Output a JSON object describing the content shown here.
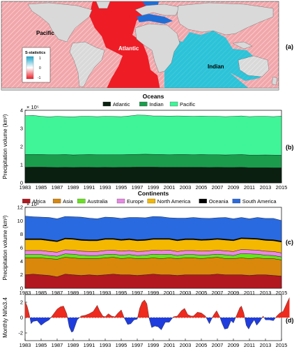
{
  "panel_labels": [
    "(a)",
    "(b)",
    "(c)",
    "(d)"
  ],
  "map": {
    "ocean_labels": [
      "Pacific",
      "Atlantic",
      "Indian"
    ],
    "legend_title": "S-statistics",
    "legend_ticks": [
      "1",
      "0",
      "-1"
    ],
    "colors": {
      "atlantic": "#ee1c25",
      "pacific": "#f1a7ab",
      "indian": "#2cc3d8",
      "land": "#b0b0b0",
      "hatch": "#ffffff"
    }
  },
  "chart_data": [
    {
      "type": "area",
      "stacked": true,
      "title": "Oceans",
      "ylabel": "Precipitation volume (km³)",
      "exponent_label": "× 10⁵",
      "ylim": [
        0,
        4
      ],
      "yticks": [
        "0",
        "1",
        "2",
        "3",
        "4"
      ],
      "xlim": [
        1983,
        2015
      ],
      "xticks": [
        "1983",
        "1985",
        "1987",
        "1989",
        "1991",
        "1993",
        "1995",
        "1997",
        "1999",
        "2001",
        "2003",
        "2005",
        "2007",
        "2009",
        "2011",
        "2013",
        "2015"
      ],
      "x": [
        1983,
        1984,
        1985,
        1986,
        1987,
        1988,
        1989,
        1990,
        1991,
        1992,
        1993,
        1994,
        1995,
        1996,
        1997,
        1998,
        1999,
        2000,
        2001,
        2002,
        2003,
        2004,
        2005,
        2006,
        2007,
        2008,
        2009,
        2010,
        2011,
        2012,
        2013,
        2014,
        2015
      ],
      "series": [
        {
          "name": "Atlantic",
          "color": "#0a1f10",
          "values": [
            0.86,
            0.87,
            0.87,
            0.86,
            0.85,
            0.86,
            0.85,
            0.86,
            0.86,
            0.85,
            0.86,
            0.85,
            0.86,
            0.86,
            0.87,
            0.87,
            0.87,
            0.86,
            0.86,
            0.86,
            0.86,
            0.86,
            0.86,
            0.85,
            0.86,
            0.85,
            0.85,
            0.86,
            0.84,
            0.84,
            0.84,
            0.83,
            0.83
          ]
        },
        {
          "name": "Indian",
          "color": "#1a9c4c",
          "values": [
            0.7,
            0.7,
            0.69,
            0.69,
            0.7,
            0.7,
            0.69,
            0.69,
            0.7,
            0.7,
            0.69,
            0.7,
            0.69,
            0.7,
            0.7,
            0.71,
            0.7,
            0.7,
            0.69,
            0.7,
            0.7,
            0.69,
            0.7,
            0.7,
            0.69,
            0.69,
            0.7,
            0.7,
            0.69,
            0.69,
            0.7,
            0.7,
            0.69
          ]
        },
        {
          "name": "Pacific",
          "color": "#3ff597",
          "values": [
            2.14,
            2.15,
            2.11,
            2.09,
            2.12,
            2.09,
            2.1,
            2.12,
            2.11,
            2.1,
            2.12,
            2.11,
            2.1,
            2.13,
            2.17,
            2.15,
            2.12,
            2.13,
            2.13,
            2.13,
            2.12,
            2.12,
            2.12,
            2.12,
            2.12,
            2.11,
            2.12,
            2.13,
            2.12,
            2.14,
            2.13,
            2.12,
            2.16
          ]
        }
      ]
    },
    {
      "type": "area",
      "stacked": true,
      "title": "Continents",
      "ylabel": "Precipitation volume (km³)",
      "exponent_label": "× 10⁴",
      "ylim": [
        0,
        12
      ],
      "yticks": [
        "0",
        "2",
        "4",
        "6",
        "8",
        "10",
        "12"
      ],
      "xlim": [
        1983,
        2015
      ],
      "xticks": [
        "1983",
        "1985",
        "1987",
        "1989",
        "1991",
        "1993",
        "1995",
        "1997",
        "1999",
        "2001",
        "2003",
        "2005",
        "2007",
        "2009",
        "2011",
        "2013",
        "2015"
      ],
      "x": [
        1983,
        1984,
        1985,
        1986,
        1987,
        1988,
        1989,
        1990,
        1991,
        1992,
        1993,
        1994,
        1995,
        1996,
        1997,
        1998,
        1999,
        2000,
        2001,
        2002,
        2003,
        2004,
        2005,
        2006,
        2007,
        2008,
        2009,
        2010,
        2011,
        2012,
        2013,
        2014,
        2015
      ],
      "series": [
        {
          "name": "Africa",
          "color": "#b11820",
          "values": [
            2.0,
            2.1,
            2.0,
            1.9,
            1.7,
            2.1,
            2.0,
            1.9,
            2.0,
            1.9,
            2.0,
            2.1,
            2.0,
            2.0,
            1.9,
            2.0,
            2.1,
            2.0,
            2.0,
            1.9,
            2.0,
            2.0,
            2.0,
            2.0,
            2.1,
            2.0,
            2.0,
            2.0,
            1.9,
            2.0,
            2.0,
            1.9,
            1.8
          ]
        },
        {
          "name": "Asia",
          "color": "#d9880c",
          "values": [
            2.5,
            2.4,
            2.5,
            2.5,
            2.6,
            2.5,
            2.5,
            2.5,
            2.4,
            2.5,
            2.5,
            2.5,
            2.4,
            2.5,
            2.5,
            2.4,
            2.4,
            2.4,
            2.5,
            2.5,
            2.5,
            2.5,
            2.4,
            2.5,
            2.5,
            2.4,
            2.4,
            2.5,
            2.5,
            2.5,
            2.4,
            2.5,
            2.4
          ]
        },
        {
          "name": "Australia",
          "color": "#66e41c",
          "values": [
            0.5,
            0.5,
            0.5,
            0.45,
            0.45,
            0.5,
            0.55,
            0.5,
            0.45,
            0.45,
            0.5,
            0.45,
            0.5,
            0.5,
            0.45,
            0.5,
            0.55,
            0.6,
            0.55,
            0.45,
            0.5,
            0.5,
            0.5,
            0.45,
            0.45,
            0.55,
            0.45,
            0.65,
            0.7,
            0.55,
            0.5,
            0.45,
            0.45
          ]
        },
        {
          "name": "Europe",
          "color": "#e987e6",
          "values": [
            0.6,
            0.6,
            0.6,
            0.6,
            0.6,
            0.6,
            0.6,
            0.6,
            0.6,
            0.6,
            0.6,
            0.6,
            0.6,
            0.6,
            0.6,
            0.6,
            0.6,
            0.6,
            0.6,
            0.6,
            0.6,
            0.6,
            0.6,
            0.6,
            0.6,
            0.6,
            0.6,
            0.6,
            0.6,
            0.6,
            0.6,
            0.6,
            0.6
          ]
        },
        {
          "name": "North America",
          "color": "#f4b800",
          "values": [
            1.6,
            1.6,
            1.6,
            1.6,
            1.55,
            1.6,
            1.6,
            1.6,
            1.6,
            1.6,
            1.65,
            1.6,
            1.6,
            1.6,
            1.6,
            1.6,
            1.6,
            1.65,
            1.6,
            1.6,
            1.6,
            1.6,
            1.6,
            1.6,
            1.6,
            1.6,
            1.6,
            1.6,
            1.6,
            1.6,
            1.6,
            1.6,
            1.6
          ]
        },
        {
          "name": "Oceania",
          "color": "#000000",
          "values": [
            0.15,
            0.15,
            0.15,
            0.15,
            0.15,
            0.15,
            0.15,
            0.15,
            0.15,
            0.15,
            0.15,
            0.15,
            0.15,
            0.15,
            0.15,
            0.15,
            0.15,
            0.15,
            0.15,
            0.15,
            0.15,
            0.15,
            0.15,
            0.15,
            0.15,
            0.15,
            0.15,
            0.15,
            0.15,
            0.15,
            0.15,
            0.15,
            0.15
          ]
        },
        {
          "name": "South America",
          "color": "#2a6ae0",
          "values": [
            3.35,
            3.25,
            3.2,
            3.3,
            3.25,
            3.2,
            3.2,
            3.3,
            3.2,
            3.1,
            3.15,
            3.1,
            3.1,
            3.15,
            3.3,
            3.2,
            3.25,
            3.2,
            3.05,
            3.2,
            3.05,
            3.15,
            3.15,
            3.05,
            3.05,
            3.2,
            3.1,
            3.0,
            2.85,
            3.1,
            3.1,
            3.15,
            3.05
          ]
        }
      ]
    },
    {
      "type": "area",
      "title": "",
      "ylabel": "Monthly Niño3.4",
      "ylim": [
        -3,
        3
      ],
      "yticks": [
        "-2",
        "0",
        "2"
      ],
      "xlim": [
        1983,
        2015
      ],
      "xticks": [
        "1983",
        "1985",
        "1987",
        "1989",
        "1991",
        "1993",
        "1995",
        "1997",
        "1999",
        "2001",
        "2003",
        "2005",
        "2007",
        "2009",
        "2011",
        "2013",
        "2015"
      ],
      "pos_color": "#ef2a1e",
      "neg_color": "#1f3ddc",
      "x": [
        1983.0,
        1983.25,
        1983.5,
        1983.75,
        1984.0,
        1984.5,
        1985.0,
        1985.5,
        1986.0,
        1986.5,
        1987.0,
        1987.4,
        1987.8,
        1988.2,
        1988.5,
        1988.8,
        1989.0,
        1989.5,
        1990.0,
        1990.5,
        1991.0,
        1991.5,
        1992.0,
        1992.3,
        1992.7,
        1993.0,
        1993.4,
        1993.8,
        1994.2,
        1994.6,
        1995.0,
        1995.4,
        1995.8,
        1996.2,
        1996.6,
        1997.0,
        1997.3,
        1997.6,
        1997.9,
        1998.2,
        1998.5,
        1998.8,
        1999.2,
        1999.6,
        2000.0,
        2000.5,
        2001.0,
        2001.5,
        2002.0,
        2002.5,
        2002.9,
        2003.3,
        2003.7,
        2004.0,
        2004.5,
        2005.0,
        2005.5,
        2006.0,
        2006.5,
        2006.9,
        2007.3,
        2007.6,
        2007.9,
        2008.3,
        2008.7,
        2009.0,
        2009.4,
        2009.8,
        2010.0,
        2010.3,
        2010.6,
        2010.9,
        2011.2,
        2011.6,
        2011.9,
        2012.3,
        2012.7,
        2013.0,
        2013.5,
        2014.0,
        2014.4,
        2014.8,
        2015.2,
        2015.5,
        2015.8,
        2016.0
      ],
      "values": [
        2.1,
        1.5,
        0.5,
        -0.8,
        -0.5,
        -0.4,
        -1.0,
        -0.6,
        -0.3,
        0.4,
        1.1,
        1.4,
        1.5,
        0.5,
        -1.2,
        -1.9,
        -1.8,
        -0.3,
        0.2,
        0.3,
        0.5,
        0.8,
        1.6,
        0.9,
        0.2,
        0.1,
        0.5,
        0.2,
        0.1,
        0.6,
        1.0,
        -0.1,
        -0.9,
        -0.8,
        -0.3,
        -0.2,
        1.2,
        2.0,
        2.3,
        1.8,
        -0.2,
        -1.3,
        -1.1,
        -1.2,
        -1.6,
        -0.6,
        -0.6,
        0.1,
        0.2,
        0.9,
        1.2,
        0.4,
        0.2,
        0.2,
        0.7,
        0.6,
        0.2,
        -0.8,
        0.3,
        0.9,
        0.1,
        -0.8,
        -1.5,
        -1.4,
        -0.4,
        -0.7,
        0.3,
        1.3,
        1.5,
        0.6,
        -1.0,
        -1.5,
        -0.9,
        -0.3,
        -1.0,
        -0.5,
        0.2,
        -0.3,
        -0.3,
        -0.4,
        0.2,
        0.6,
        0.8,
        1.5,
        2.2,
        2.6
      ]
    }
  ]
}
